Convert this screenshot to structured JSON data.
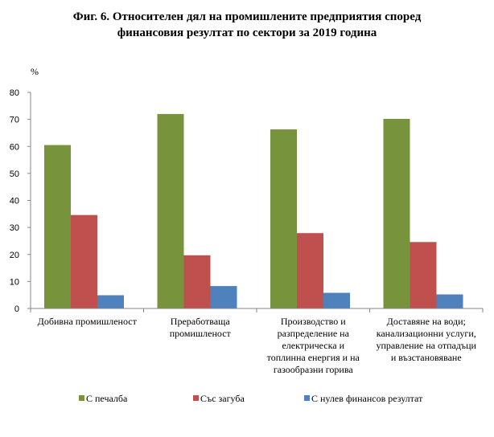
{
  "chart_data": {
    "type": "bar",
    "title_lines": [
      "Фиг. 6. Относителен дял на промишлените предприятия според",
      "финансовия резултат по сектори за 2019 година"
    ],
    "ylabel": "%",
    "ylim": [
      0,
      80
    ],
    "yticks": [
      0,
      10,
      20,
      30,
      40,
      50,
      60,
      70,
      80
    ],
    "grid": false,
    "legend_position": "bottom",
    "categories": [
      [
        "Добивна промишленост"
      ],
      [
        "Преработваща",
        "промишленост"
      ],
      [
        "Производство и",
        "разпределение на",
        "електрическа и",
        "топлинна енергия и на",
        "газообразни горива"
      ],
      [
        "Доставяне на води;",
        "канализационни услуги,",
        "управление на отпадъци",
        "и възстановяване"
      ]
    ],
    "series": [
      {
        "name": "С печалба",
        "color": "#77933C",
        "values": [
          60.5,
          72.0,
          66.3,
          70.2
        ]
      },
      {
        "name": "Със загуба",
        "color": "#C0504D",
        "values": [
          34.6,
          19.7,
          27.9,
          24.6
        ]
      },
      {
        "name": "С нулев финансов  резултат",
        "color": "#4F81BD",
        "values": [
          4.9,
          8.3,
          5.8,
          5.2
        ]
      }
    ]
  }
}
